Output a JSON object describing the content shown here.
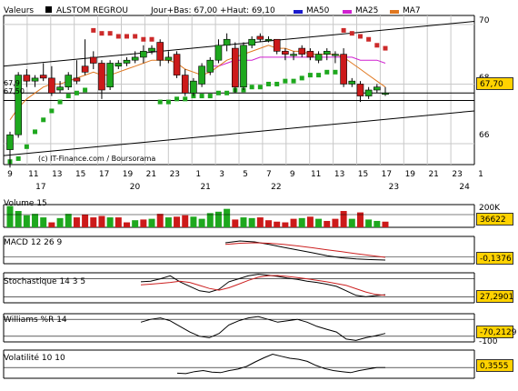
{
  "header": {
    "prefix": "Valeurs",
    "stock_name": "ALSTOM REGROU",
    "ohlc": "Jour+Bas: 67,00 +Haut: 69,10"
  },
  "legend": [
    {
      "label": "MA50",
      "color": "#1a1acc"
    },
    {
      "label": "MA25",
      "color": "#d020d0"
    },
    {
      "label": "MA7",
      "color": "#e07820"
    }
  ],
  "colors": {
    "up": "#1ea81e",
    "down": "#cc1a1a",
    "price_box": "#ffd200",
    "psar_up": "#1ea81e",
    "psar_down": "#cc2a2a",
    "oscillator_line": "#000000",
    "signal_line": "#cc2020"
  },
  "watermark": "(c) IT-Finance.com / Boursorama",
  "price_panel": {
    "y_ticks": [
      "70",
      "68",
      "66"
    ],
    "last_price": "67,70",
    "side_labels": [
      "67,9",
      "67,50"
    ],
    "x_ticks": [
      "9",
      "11",
      "13",
      "15",
      "17",
      "19",
      "21",
      "23",
      "1",
      "3",
      "5",
      "7",
      "9",
      "11",
      "13",
      "15",
      "17",
      "19",
      "21",
      "23",
      "1"
    ],
    "months": [
      {
        "label": "17",
        "col": 1
      },
      {
        "label": "20",
        "col": 5
      },
      {
        "label": "21",
        "col": 8
      },
      {
        "label": "22",
        "col": 11
      },
      {
        "label": "23",
        "col": 16
      },
      {
        "label": "24",
        "col": 19
      }
    ]
  },
  "volume_panel": {
    "title": "Volume 15",
    "tick": "200K",
    "value": "36622"
  },
  "macd_panel": {
    "title": "MACD 12 26 9",
    "value": "-0,1376"
  },
  "stoch_panel": {
    "title": "Stochastique 14 3 5",
    "value": "27,2901"
  },
  "williams_panel": {
    "title": "Williams %R 14",
    "value": "-70,2129",
    "tick": "-100"
  },
  "volat_panel": {
    "title": "Volatilité 10 10",
    "value": "0,3555"
  },
  "chart_data": {
    "type": "candlestick",
    "title": "ALSTOM REGROU",
    "ylim": [
      65.3,
      70.3
    ],
    "y_ticks": [
      70,
      68,
      66
    ],
    "candles": [
      {
        "o": 65.8,
        "h": 66.4,
        "l": 65.2,
        "c": 66.3
      },
      {
        "o": 66.3,
        "h": 68.4,
        "l": 66.2,
        "c": 68.3
      },
      {
        "o": 68.3,
        "h": 68.5,
        "l": 67.9,
        "c": 68.1
      },
      {
        "o": 68.1,
        "h": 68.3,
        "l": 67.9,
        "c": 68.2
      },
      {
        "o": 68.3,
        "h": 68.7,
        "l": 68.1,
        "c": 68.2
      },
      {
        "o": 68.2,
        "h": 68.6,
        "l": 67.6,
        "c": 67.7
      },
      {
        "o": 67.8,
        "h": 68.1,
        "l": 67.7,
        "c": 67.9
      },
      {
        "o": 67.9,
        "h": 68.4,
        "l": 67.8,
        "c": 68.3
      },
      {
        "o": 68.2,
        "h": 68.8,
        "l": 68.0,
        "c": 68.1
      },
      {
        "o": 68.6,
        "h": 69.5,
        "l": 68.3,
        "c": 68.4
      },
      {
        "o": 68.9,
        "h": 69.1,
        "l": 68.5,
        "c": 68.7
      },
      {
        "o": 68.7,
        "h": 68.8,
        "l": 67.5,
        "c": 67.8
      },
      {
        "o": 67.9,
        "h": 68.8,
        "l": 67.8,
        "c": 68.7
      },
      {
        "o": 68.6,
        "h": 68.8,
        "l": 68.5,
        "c": 68.7
      },
      {
        "o": 68.7,
        "h": 68.9,
        "l": 68.6,
        "c": 68.8
      },
      {
        "o": 68.8,
        "h": 69.1,
        "l": 68.7,
        "c": 68.9
      },
      {
        "o": 68.9,
        "h": 69.3,
        "l": 68.7,
        "c": 69.1
      },
      {
        "o": 69.1,
        "h": 69.3,
        "l": 69.0,
        "c": 69.2
      },
      {
        "o": 69.4,
        "h": 69.5,
        "l": 68.6,
        "c": 68.8
      },
      {
        "o": 68.8,
        "h": 69.1,
        "l": 68.7,
        "c": 68.9
      },
      {
        "o": 69.0,
        "h": 69.1,
        "l": 68.2,
        "c": 68.3
      },
      {
        "o": 68.3,
        "h": 68.5,
        "l": 67.6,
        "c": 67.7
      },
      {
        "o": 67.7,
        "h": 68.2,
        "l": 67.6,
        "c": 68.1
      },
      {
        "o": 68.0,
        "h": 68.7,
        "l": 67.9,
        "c": 68.6
      },
      {
        "o": 68.4,
        "h": 68.9,
        "l": 68.3,
        "c": 68.8
      },
      {
        "o": 68.8,
        "h": 69.5,
        "l": 68.7,
        "c": 69.3
      },
      {
        "o": 69.3,
        "h": 69.7,
        "l": 69.1,
        "c": 69.5
      },
      {
        "o": 69.2,
        "h": 69.4,
        "l": 67.7,
        "c": 67.9
      },
      {
        "o": 67.9,
        "h": 69.4,
        "l": 67.8,
        "c": 69.3
      },
      {
        "o": 69.3,
        "h": 69.6,
        "l": 69.2,
        "c": 69.5
      },
      {
        "o": 69.6,
        "h": 69.7,
        "l": 69.4,
        "c": 69.5
      },
      {
        "o": 69.5,
        "h": 69.6,
        "l": 69.4,
        "c": 69.5
      },
      {
        "o": 69.5,
        "h": 69.5,
        "l": 69.0,
        "c": 69.1
      },
      {
        "o": 69.1,
        "h": 69.2,
        "l": 68.8,
        "c": 69.0
      },
      {
        "o": 69.0,
        "h": 69.1,
        "l": 68.8,
        "c": 69.0
      },
      {
        "o": 69.2,
        "h": 69.3,
        "l": 68.9,
        "c": 69.0
      },
      {
        "o": 69.1,
        "h": 69.2,
        "l": 68.8,
        "c": 68.9
      },
      {
        "o": 68.8,
        "h": 69.1,
        "l": 68.7,
        "c": 69.0
      },
      {
        "o": 69.0,
        "h": 69.2,
        "l": 68.8,
        "c": 69.1
      },
      {
        "o": 69.0,
        "h": 69.1,
        "l": 68.7,
        "c": 69.0
      },
      {
        "o": 69.0,
        "h": 69.2,
        "l": 67.9,
        "c": 68.0
      },
      {
        "o": 68.0,
        "h": 68.2,
        "l": 67.9,
        "c": 68.1
      },
      {
        "o": 68.0,
        "h": 68.1,
        "l": 67.4,
        "c": 67.6
      },
      {
        "o": 67.6,
        "h": 67.9,
        "l": 67.5,
        "c": 67.8
      },
      {
        "o": 67.8,
        "h": 68.0,
        "l": 67.7,
        "c": 67.9
      },
      {
        "o": 67.7,
        "h": 67.9,
        "l": 67.6,
        "c": 67.7
      }
    ],
    "ma7": [
      66.8,
      67.2,
      67.5,
      67.7,
      67.9,
      68.0,
      68.0,
      68.1,
      68.2,
      68.3,
      68.4,
      68.3,
      68.3,
      68.4,
      68.5,
      68.6,
      68.7,
      68.8,
      68.8,
      68.8,
      68.7,
      68.5,
      68.4,
      68.3,
      68.4,
      68.6,
      68.8,
      68.9,
      69.0,
      69.1,
      69.2,
      69.3,
      69.2,
      69.2,
      69.1,
      69.1,
      69.0,
      69.0,
      69.0,
      69.0,
      68.9,
      68.7,
      68.5,
      68.3,
      68.1,
      67.9
    ],
    "ma25": [
      null,
      null,
      null,
      null,
      null,
      null,
      null,
      null,
      null,
      null,
      null,
      null,
      null,
      null,
      null,
      null,
      null,
      null,
      null,
      null,
      null,
      null,
      null,
      null,
      68.6,
      68.6,
      68.7,
      68.8,
      68.8,
      68.8,
      68.9,
      68.9,
      68.9,
      68.9,
      68.9,
      68.9,
      68.9,
      68.9,
      68.9,
      68.9,
      68.9,
      68.9,
      68.8,
      68.8,
      68.8,
      68.7
    ],
    "psar": [
      {
        "v": 65.4,
        "side": "up"
      },
      {
        "v": 65.5,
        "side": "up"
      },
      {
        "v": 65.9,
        "side": "up"
      },
      {
        "v": 66.4,
        "side": "up"
      },
      {
        "v": 66.8,
        "side": "up"
      },
      {
        "v": 67.1,
        "side": "up"
      },
      {
        "v": 67.4,
        "side": "up"
      },
      {
        "v": 67.6,
        "side": "up"
      },
      {
        "v": 67.7,
        "side": "up"
      },
      {
        "v": 67.8,
        "side": "up"
      },
      {
        "v": 69.8,
        "side": "down"
      },
      {
        "v": 69.7,
        "side": "down"
      },
      {
        "v": 69.7,
        "side": "down"
      },
      {
        "v": 69.6,
        "side": "down"
      },
      {
        "v": 69.6,
        "side": "down"
      },
      {
        "v": 69.6,
        "side": "down"
      },
      {
        "v": 69.5,
        "side": "down"
      },
      {
        "v": 69.5,
        "side": "down"
      },
      {
        "v": 67.4,
        "side": "up"
      },
      {
        "v": 67.4,
        "side": "up"
      },
      {
        "v": 67.5,
        "side": "up"
      },
      {
        "v": 67.5,
        "side": "up"
      },
      {
        "v": 67.6,
        "side": "up"
      },
      {
        "v": 67.6,
        "side": "up"
      },
      {
        "v": 67.6,
        "side": "up"
      },
      {
        "v": 67.7,
        "side": "up"
      },
      {
        "v": 67.7,
        "side": "up"
      },
      {
        "v": 67.8,
        "side": "up"
      },
      {
        "v": 67.8,
        "side": "up"
      },
      {
        "v": 67.9,
        "side": "up"
      },
      {
        "v": 67.9,
        "side": "up"
      },
      {
        "v": 68.0,
        "side": "up"
      },
      {
        "v": 68.0,
        "side": "up"
      },
      {
        "v": 68.1,
        "side": "up"
      },
      {
        "v": 68.1,
        "side": "up"
      },
      {
        "v": 68.2,
        "side": "up"
      },
      {
        "v": 68.3,
        "side": "up"
      },
      {
        "v": 68.3,
        "side": "up"
      },
      {
        "v": 68.4,
        "side": "up"
      },
      {
        "v": 68.4,
        "side": "up"
      },
      {
        "v": 69.8,
        "side": "down"
      },
      {
        "v": 69.7,
        "side": "down"
      },
      {
        "v": 69.6,
        "side": "down"
      },
      {
        "v": 69.5,
        "side": "down"
      },
      {
        "v": 69.3,
        "side": "down"
      },
      {
        "v": 69.2,
        "side": "down"
      }
    ],
    "volume": [
      {
        "v": 150,
        "side": "up"
      },
      {
        "v": 115,
        "side": "up"
      },
      {
        "v": 85,
        "side": "up"
      },
      {
        "v": 95,
        "side": "up"
      },
      {
        "v": 70,
        "side": "up"
      },
      {
        "v": 35,
        "side": "down"
      },
      {
        "v": 65,
        "side": "up"
      },
      {
        "v": 95,
        "side": "up"
      },
      {
        "v": 70,
        "side": "down"
      },
      {
        "v": 90,
        "side": "down"
      },
      {
        "v": 70,
        "side": "down"
      },
      {
        "v": 80,
        "side": "down"
      },
      {
        "v": 70,
        "side": "up"
      },
      {
        "v": 70,
        "side": "down"
      },
      {
        "v": 35,
        "side": "down"
      },
      {
        "v": 50,
        "side": "up"
      },
      {
        "v": 55,
        "side": "down"
      },
      {
        "v": 60,
        "side": "up"
      },
      {
        "v": 95,
        "side": "down"
      },
      {
        "v": 70,
        "side": "up"
      },
      {
        "v": 75,
        "side": "down"
      },
      {
        "v": 85,
        "side": "down"
      },
      {
        "v": 75,
        "side": "up"
      },
      {
        "v": 60,
        "side": "up"
      },
      {
        "v": 100,
        "side": "up"
      },
      {
        "v": 110,
        "side": "up"
      },
      {
        "v": 130,
        "side": "up"
      },
      {
        "v": 55,
        "side": "down"
      },
      {
        "v": 70,
        "side": "up"
      },
      {
        "v": 65,
        "side": "up"
      },
      {
        "v": 70,
        "side": "down"
      },
      {
        "v": 50,
        "side": "down"
      },
      {
        "v": 40,
        "side": "down"
      },
      {
        "v": 35,
        "side": "down"
      },
      {
        "v": 60,
        "side": "down"
      },
      {
        "v": 65,
        "side": "up"
      },
      {
        "v": 75,
        "side": "down"
      },
      {
        "v": 60,
        "side": "up"
      },
      {
        "v": 45,
        "side": "down"
      },
      {
        "v": 60,
        "side": "down"
      },
      {
        "v": 115,
        "side": "down"
      },
      {
        "v": 60,
        "side": "up"
      },
      {
        "v": 105,
        "side": "down"
      },
      {
        "v": 55,
        "side": "up"
      },
      {
        "v": 45,
        "side": "up"
      },
      {
        "v": 40,
        "side": "down"
      }
    ],
    "macd": {
      "main": [
        0.62,
        0.7,
        0.66,
        0.55,
        0.42,
        0.3,
        0.18,
        0.05,
        -0.04,
        -0.09,
        -0.12,
        -0.14
      ],
      "signal": [
        0.55,
        0.6,
        0.62,
        0.6,
        0.55,
        0.48,
        0.4,
        0.31,
        0.23,
        0.14,
        0.06,
        -0.02
      ]
    },
    "stochastic": {
      "k": [
        70,
        72,
        80,
        90,
        70,
        55,
        40,
        35,
        45,
        70,
        80,
        90,
        95,
        92,
        88,
        82,
        78,
        72,
        68,
        62,
        55,
        40,
        25,
        20,
        24,
        27
      ],
      "d": [
        60,
        62,
        65,
        68,
        72,
        68,
        58,
        48,
        42,
        50,
        62,
        75,
        85,
        90,
        91,
        88,
        84,
        80,
        75,
        70,
        64,
        58,
        47,
        36,
        28,
        25
      ]
    },
    "williams": [
      -30,
      -20,
      -15,
      -25,
      -45,
      -65,
      -80,
      -85,
      -70,
      -40,
      -25,
      -15,
      -10,
      -20,
      -30,
      -25,
      -20,
      -30,
      -45,
      -55,
      -65,
      -90,
      -95,
      -85,
      -78,
      -70
    ],
    "volatility": [
      0.25,
      0.24,
      0.28,
      0.3,
      0.27,
      0.26,
      0.3,
      0.33,
      0.38,
      0.47,
      0.55,
      0.62,
      0.58,
      0.54,
      0.52,
      0.48,
      0.4,
      0.34,
      0.3,
      0.28,
      0.26,
      0.3,
      0.33,
      0.36,
      0.36
    ]
  }
}
